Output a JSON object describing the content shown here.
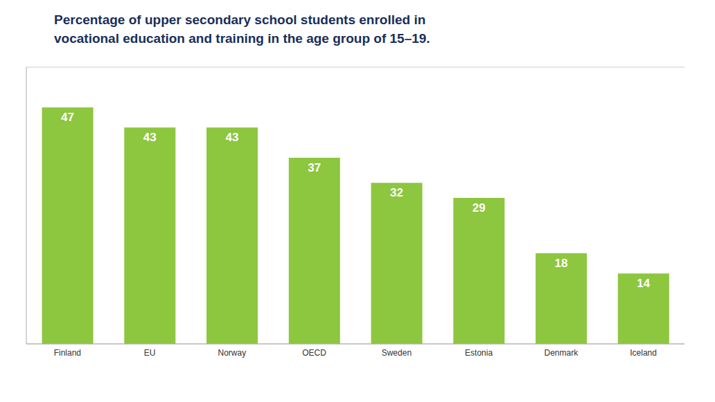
{
  "chart_data": {
    "type": "bar",
    "title": "Percentage of upper secondary school students enrolled in\nvocational education and training in the age group of 15–19.",
    "categories": [
      "Finland",
      "EU",
      "Norway",
      "OECD",
      "Sweden",
      "Estonia",
      "Denmark",
      "Iceland"
    ],
    "values": [
      47,
      43,
      43,
      37,
      32,
      29,
      18,
      14
    ],
    "color": "#8DC63F",
    "ylim": [
      0,
      55
    ],
    "yticks": [
      0,
      10,
      20,
      30,
      40,
      50
    ],
    "grid": true,
    "data_labels": true,
    "tick_labels": "x"
  }
}
